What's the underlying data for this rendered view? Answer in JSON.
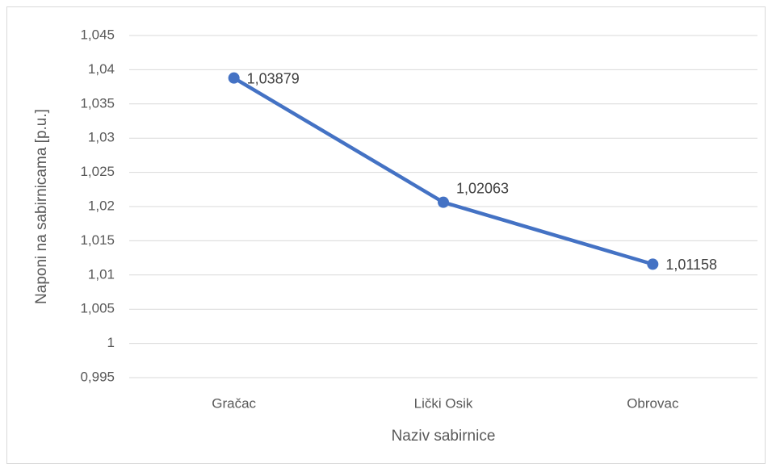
{
  "chart_data": {
    "type": "line",
    "x_label": "Naziv sabirnice",
    "y_label": "Naponi na sabirnicama [p.u.]",
    "categories": [
      "Gračac",
      "Lički Osik",
      "Obrovac"
    ],
    "series": [
      {
        "name": null,
        "color": "#4472c4",
        "values": [
          1.03879,
          1.02063,
          1.01158
        ],
        "value_labels": [
          "1,03879",
          "1,02063",
          "1,01158"
        ]
      }
    ],
    "ylim": [
      0.995,
      1.045
    ],
    "yticks": [
      {
        "value": 0.995,
        "label": "0,995"
      },
      1,
      {
        "value": 1.005,
        "label": "1,005"
      },
      {
        "value": 1.01,
        "label": "1,01"
      },
      {
        "value": 1.015,
        "label": "1,015"
      },
      {
        "value": 1.02,
        "label": "1,02"
      },
      {
        "value": 1.025,
        "label": "1,025"
      },
      {
        "value": 1.03,
        "label": "1,03"
      },
      {
        "value": 1.035,
        "label": "1,035"
      },
      {
        "value": 1.04,
        "label": "1,04"
      },
      {
        "value": 1.045,
        "label": "1,045"
      }
    ],
    "grid": true
  }
}
